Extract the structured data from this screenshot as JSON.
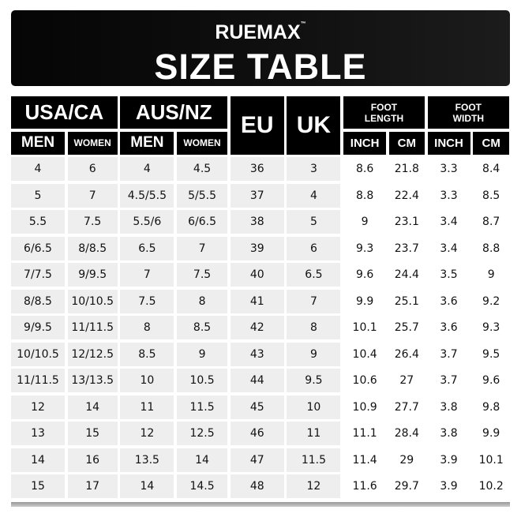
{
  "brand": {
    "logo": "RUEMAX",
    "trademark": "™"
  },
  "title": "SIZE TABLE",
  "headers": {
    "usa": "USA/CA",
    "aus": "AUS/NZ",
    "eu": "EU",
    "uk": "UK",
    "foot_length": "FOOT LENGTH",
    "foot_width": "FOOT WIDTH",
    "men": "MEN",
    "women": "WOMEN",
    "inch": "INCH",
    "cm": "CM"
  },
  "rows": [
    [
      "4",
      "6",
      "4",
      "4.5",
      "36",
      "3",
      "8.6",
      "21.8",
      "3.3",
      "8.4"
    ],
    [
      "5",
      "7",
      "4.5/5.5",
      "5/5.5",
      "37",
      "4",
      "8.8",
      "22.4",
      "3.3",
      "8.5"
    ],
    [
      "5.5",
      "7.5",
      "5.5/6",
      "6/6.5",
      "38",
      "5",
      "9",
      "23.1",
      "3.4",
      "8.7"
    ],
    [
      "6/6.5",
      "8/8.5",
      "6.5",
      "7",
      "39",
      "6",
      "9.3",
      "23.7",
      "3.4",
      "8.8"
    ],
    [
      "7/7.5",
      "9/9.5",
      "7",
      "7.5",
      "40",
      "6.5",
      "9.6",
      "24.4",
      "3.5",
      "9"
    ],
    [
      "8/8.5",
      "10/10.5",
      "7.5",
      "8",
      "41",
      "7",
      "9.9",
      "25.1",
      "3.6",
      "9.2"
    ],
    [
      "9/9.5",
      "11/11.5",
      "8",
      "8.5",
      "42",
      "8",
      "10.1",
      "25.7",
      "3.6",
      "9.3"
    ],
    [
      "10/10.5",
      "12/12.5",
      "8.5",
      "9",
      "43",
      "9",
      "10.4",
      "26.4",
      "3.7",
      "9.5"
    ],
    [
      "11/11.5",
      "13/13.5",
      "10",
      "10.5",
      "44",
      "9.5",
      "10.6",
      "27",
      "3.7",
      "9.6"
    ],
    [
      "12",
      "14",
      "11",
      "11.5",
      "45",
      "10",
      "10.9",
      "27.7",
      "3.8",
      "9.8"
    ],
    [
      "13",
      "15",
      "12",
      "12.5",
      "46",
      "11",
      "11.1",
      "28.4",
      "3.8",
      "9.9"
    ],
    [
      "14",
      "16",
      "13.5",
      "14",
      "47",
      "11.5",
      "11.4",
      "29",
      "3.9",
      "10.1"
    ],
    [
      "15",
      "17",
      "14",
      "14.5",
      "48",
      "12",
      "11.6",
      "29.7",
      "3.9",
      "10.2"
    ]
  ]
}
